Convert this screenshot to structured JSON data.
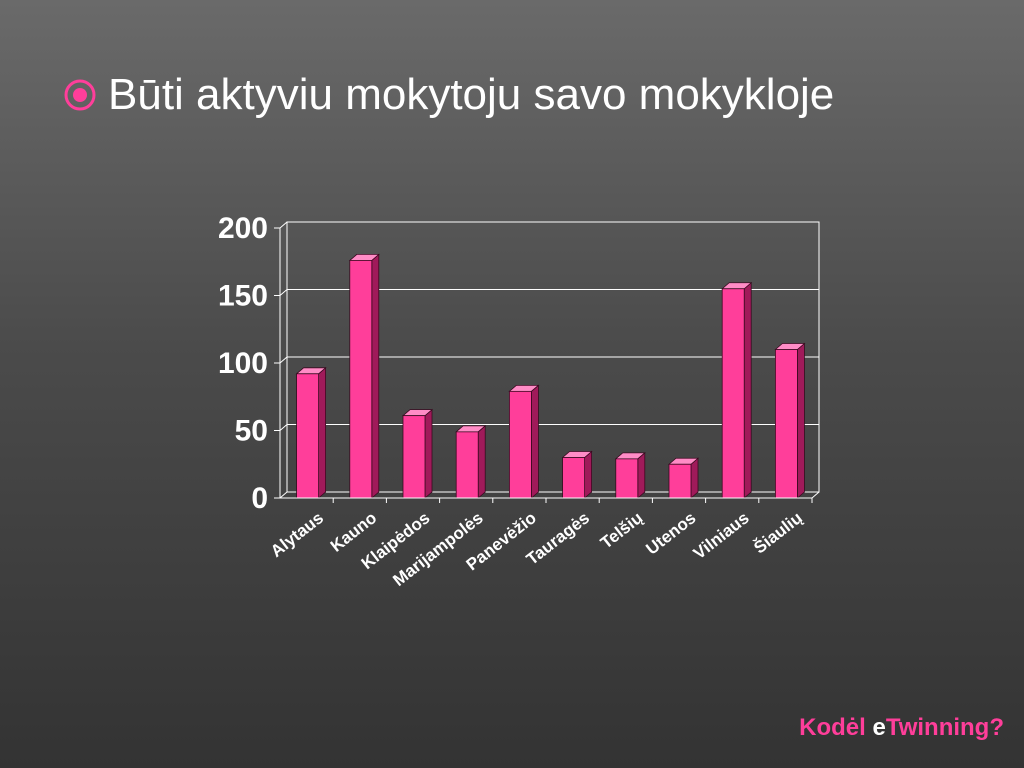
{
  "slide": {
    "bullet_icon": "radio-bullet-icon",
    "heading": "Būti aktyviu mokytoju savo mokykloje",
    "footer_part1": "Kodėl ",
    "footer_part2": "e",
    "footer_part3": "Twinning?"
  },
  "colors": {
    "bar_front": "#ff3e9a",
    "bar_side": "#a01a5a",
    "bar_top": "#ff8cc6",
    "grid": "#ffffff",
    "accent": "#ff3e9a"
  },
  "chart_data": {
    "type": "bar",
    "categories": [
      "Alytaus",
      "Kauno",
      "Klaipėdos",
      "Marijampolės",
      "Panevėžio",
      "Tauragės",
      "Telšių",
      "Utenos",
      "Vilniaus",
      "Šiaulių"
    ],
    "values": [
      92,
      176,
      61,
      49,
      79,
      30,
      29,
      25,
      155,
      110
    ],
    "ylim": [
      0,
      200
    ],
    "yticks": [
      "0",
      "50",
      "100",
      "150",
      "200"
    ],
    "grid": true,
    "title": "",
    "xlabel": "",
    "ylabel": ""
  }
}
